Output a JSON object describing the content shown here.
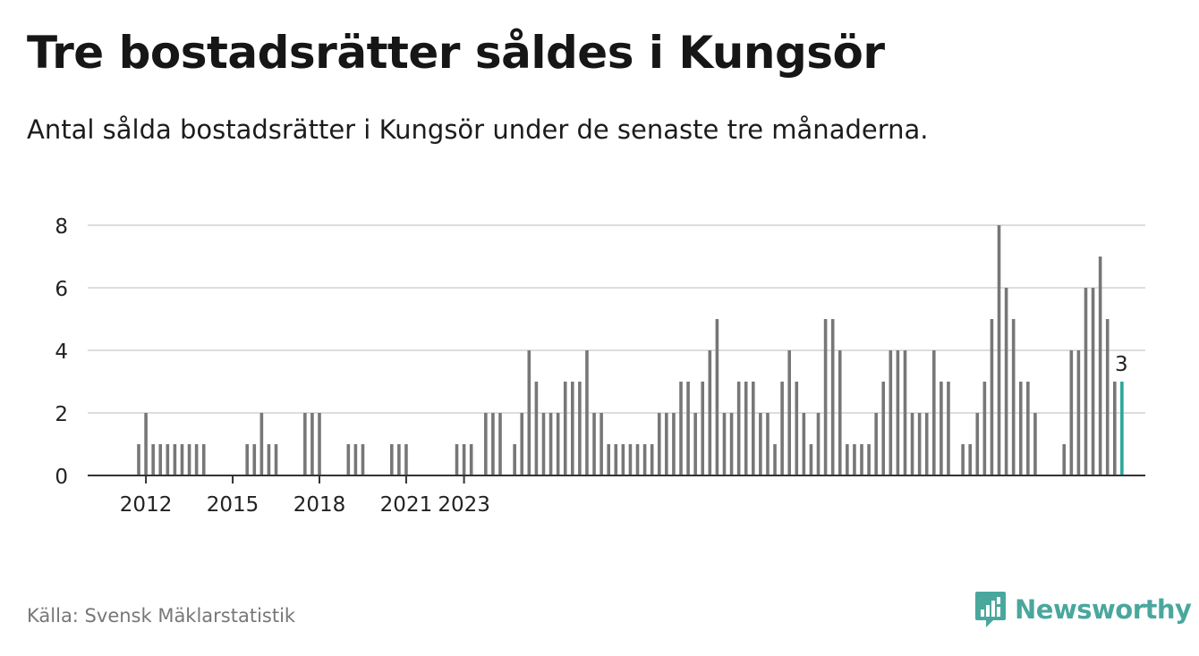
{
  "header": {
    "title": "Tre bostadsrätter såldes i Kungsör",
    "subtitle": "Antal sålda bostadsrätter i Kungsör under de senaste tre månaderna."
  },
  "footer": {
    "source": "Källa: Svensk Mäklarstatistik",
    "brand": "Newsworthy",
    "brand_icon": "bar-chart-speech-bubble-icon"
  },
  "colors": {
    "bar": "#777777",
    "highlight": "#2aa89b",
    "grid": "#dddddd",
    "axis": "#333333",
    "brand": "#4aa79d"
  },
  "chart_data": {
    "type": "bar",
    "title": "Tre bostadsrätter såldes i Kungsör",
    "subtitle": "Antal sålda bostadsrätter i Kungsör under de senaste tre månaderna.",
    "x_start": "2011-10",
    "x_unit": "quarter",
    "x_ticks": [
      {
        "label": "2012",
        "x": "2012-01"
      },
      {
        "label": "2015",
        "x": "2015-01"
      },
      {
        "label": "2018",
        "x": "2018-01"
      },
      {
        "label": "2021",
        "x": "2021-01"
      },
      {
        "label": "2023",
        "x": "2023-01"
      }
    ],
    "y_ticks": [
      0,
      2,
      4,
      6,
      8
    ],
    "ylim": [
      0,
      8
    ],
    "grid": true,
    "highlight_label": "3",
    "values": [
      1,
      2,
      1,
      1,
      1,
      1,
      1,
      1,
      1,
      1,
      0,
      0,
      0,
      0,
      0,
      1,
      1,
      2,
      1,
      1,
      0,
      0,
      0,
      2,
      2,
      2,
      0,
      0,
      0,
      1,
      1,
      1,
      0,
      0,
      0,
      1,
      1,
      1,
      0,
      0,
      0,
      0,
      0,
      0,
      1,
      1,
      1,
      0,
      2,
      2,
      2,
      0,
      1,
      2,
      4,
      3,
      2,
      2,
      2,
      3,
      3,
      3,
      4,
      2,
      2,
      1,
      1,
      1,
      1,
      1,
      1,
      1,
      2,
      2,
      2,
      3,
      3,
      2,
      3,
      4,
      5,
      2,
      2,
      3,
      3,
      3,
      2,
      2,
      1,
      3,
      4,
      3,
      2,
      1,
      2,
      5,
      5,
      4,
      1,
      1,
      1,
      1,
      2,
      3,
      4,
      4,
      4,
      2,
      2,
      2,
      4,
      3,
      3,
      0,
      1,
      1,
      2,
      3,
      5,
      8,
      6,
      5,
      3,
      3,
      2,
      0,
      0,
      0,
      1,
      4,
      4,
      6,
      6,
      7,
      5,
      3,
      3
    ]
  }
}
